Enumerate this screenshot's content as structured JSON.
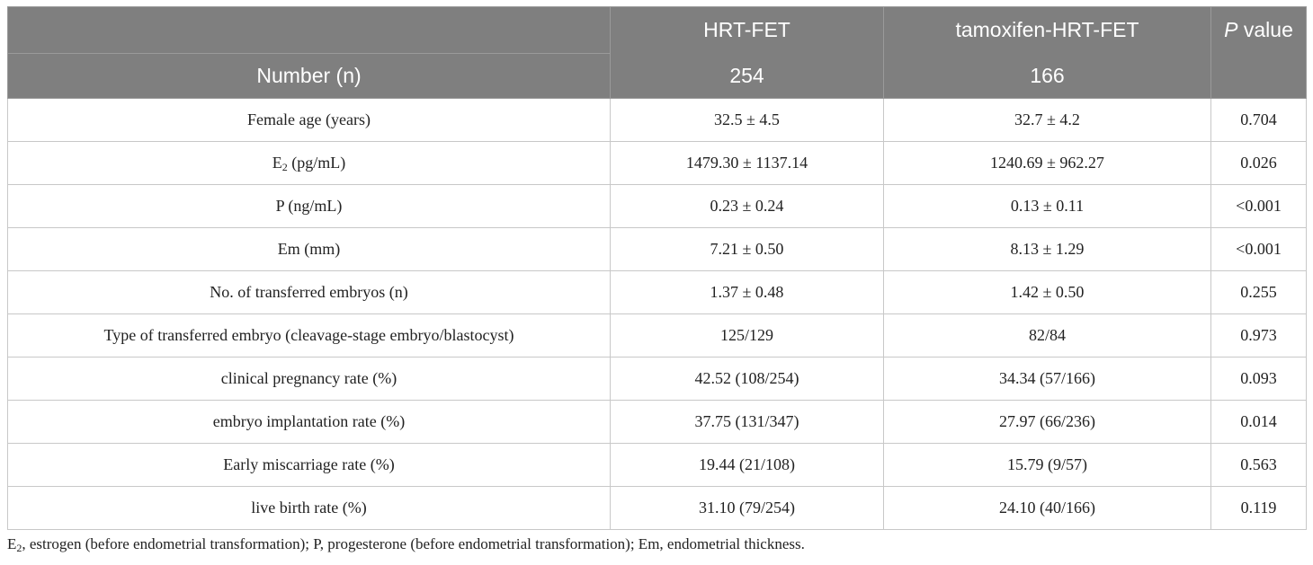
{
  "table": {
    "header_row1": {
      "col0": "",
      "col1": "HRT-FET",
      "col2": "tamoxifen-HRT-FET",
      "col3_italic": "P",
      "col3_rest": " value"
    },
    "header_row2": {
      "col0": "Number (n)",
      "col1": "254",
      "col2": "166",
      "col3": ""
    },
    "rows": [
      {
        "label": "Female age (years)",
        "hrt": "32.5 ± 4.5",
        "tam": "32.7 ± 4.2",
        "p": "0.704"
      },
      {
        "label_pre": "E",
        "label_sub": "2",
        "label_post": " (pg/mL)",
        "hrt": "1479.30 ± 1137.14",
        "tam": "1240.69 ± 962.27",
        "p": "0.026"
      },
      {
        "label": "P (ng/mL)",
        "hrt": "0.23 ± 0.24",
        "tam": "0.13 ± 0.11",
        "p": "<0.001"
      },
      {
        "label": "Em (mm)",
        "hrt": "7.21 ± 0.50",
        "tam": "8.13 ± 1.29",
        "p": "<0.001"
      },
      {
        "label": "No. of transferred embryos (n)",
        "hrt": "1.37 ± 0.48",
        "tam": "1.42 ± 0.50",
        "p": "0.255"
      },
      {
        "label": "Type of transferred embryo (cleavage-stage embryo/blastocyst)",
        "hrt": "125/129",
        "tam": "82/84",
        "p": "0.973"
      },
      {
        "label": "clinical pregnancy rate (%)",
        "hrt": "42.52 (108/254)",
        "tam": "34.34 (57/166)",
        "p": "0.093"
      },
      {
        "label": "embryo implantation rate (%)",
        "hrt": "37.75 (131/347)",
        "tam": "27.97 (66/236)",
        "p": "0.014"
      },
      {
        "label": "Early miscarriage rate (%)",
        "hrt": "19.44 (21/108)",
        "tam": "15.79 (9/57)",
        "p": "0.563"
      },
      {
        "label": "live birth rate (%)",
        "hrt": "31.10 (79/254)",
        "tam": "24.10 (40/166)",
        "p": "0.119"
      }
    ]
  },
  "footnote": {
    "pre": "E",
    "sub": "2",
    "post": ", estrogen (before endometrial transformation); P, progesterone (before endometrial transformation); Em, endometrial thickness."
  }
}
